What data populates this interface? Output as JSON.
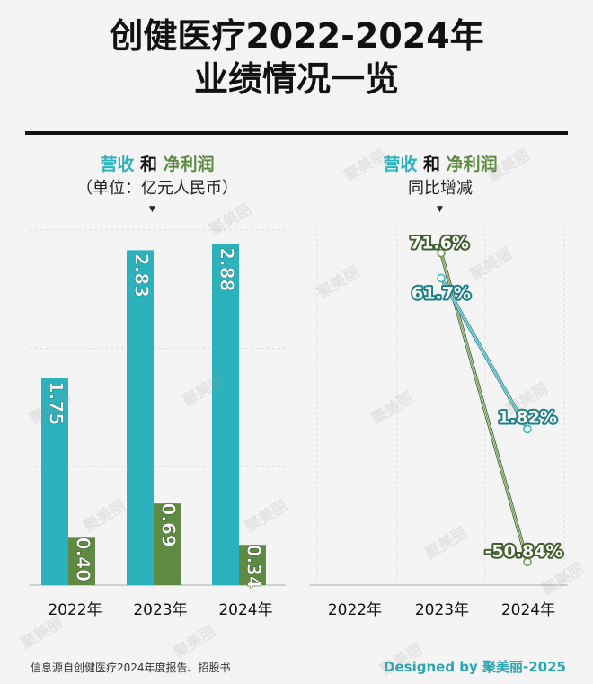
{
  "header": {
    "title_line1": "创健医疗2022-2024年",
    "title_line2": "业绩情况一览"
  },
  "panels": {
    "left": {
      "title_rev": "营收",
      "title_and": "和",
      "title_profit": "净利润",
      "subtitle": "（单位：亿元人民币）"
    },
    "right": {
      "title_rev": "营收",
      "title_and": "和",
      "title_profit": "净利润",
      "subtitle": "同比增减"
    }
  },
  "footer": {
    "source": "信息源自创健医疗2024年度报告、招股书",
    "credit": "Designed by 聚美丽-2025"
  },
  "watermark": "聚美丽",
  "colors": {
    "revenue": "#2bb2bd",
    "profit": "#5f8a43",
    "revenue_line": "#3bb6c4",
    "profit_line": "#6f9a52"
  },
  "chart_data": [
    {
      "type": "bar",
      "categories": [
        "2022年",
        "2023年",
        "2024年"
      ],
      "series": [
        {
          "name": "营收",
          "values": [
            1.75,
            2.83,
            2.88
          ]
        },
        {
          "name": "净利润",
          "values": [
            0.4,
            0.69,
            0.34
          ]
        }
      ],
      "value_labels": {
        "营收": [
          "1.75",
          "2.83",
          "2.88"
        ],
        "净利润": [
          "0.40",
          "0.69",
          "0.34"
        ]
      },
      "ylim": [
        0,
        3.0
      ],
      "grid": true,
      "legend": "top"
    },
    {
      "type": "line",
      "categories": [
        "2022年",
        "2023年",
        "2024年"
      ],
      "series": [
        {
          "name": "营收",
          "values": [
            null,
            61.7,
            1.82
          ],
          "labels": [
            "",
            "61.7%",
            "1.82%"
          ]
        },
        {
          "name": "净利润",
          "values": [
            null,
            71.6,
            -50.84
          ],
          "labels": [
            "",
            "71.6%",
            "-50.84%"
          ]
        }
      ],
      "ylim": [
        -60,
        80
      ],
      "grid": true,
      "legend": "top"
    }
  ]
}
